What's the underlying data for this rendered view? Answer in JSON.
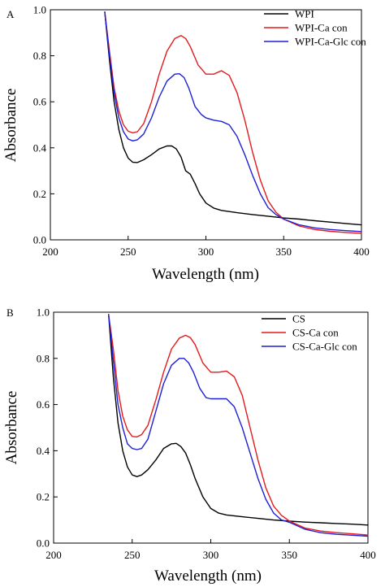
{
  "chart_data": [
    {
      "type": "line",
      "panel_label": "A",
      "xlabel": "Wavelength (nm)",
      "ylabel": "Absorbance",
      "xlim": [
        200,
        400
      ],
      "ylim": [
        0.0,
        1.0
      ],
      "xticks": [
        200,
        250,
        300,
        350,
        400
      ],
      "yticks": [
        0.0,
        0.2,
        0.4,
        0.6,
        0.8,
        1.0
      ],
      "xtick_labels": [
        "200",
        "250",
        "300",
        "350",
        "400"
      ],
      "ytick_labels": [
        "0.0",
        "0.2",
        "0.4",
        "0.6",
        "0.8",
        "1.0"
      ],
      "grid": false,
      "legend_position": "top-right",
      "series": [
        {
          "name": "WPI",
          "color": "#000000",
          "x": [
            235,
            238,
            241,
            244,
            247,
            250,
            253,
            256,
            260,
            265,
            270,
            275,
            278,
            281,
            284,
            287,
            290,
            293,
            296,
            300,
            305,
            310,
            320,
            330,
            340,
            350,
            360,
            370,
            380,
            390,
            400
          ],
          "y": [
            0.99,
            0.78,
            0.6,
            0.48,
            0.4,
            0.355,
            0.337,
            0.336,
            0.348,
            0.37,
            0.395,
            0.408,
            0.408,
            0.395,
            0.36,
            0.3,
            0.285,
            0.245,
            0.2,
            0.16,
            0.138,
            0.128,
            0.118,
            0.11,
            0.103,
            0.095,
            0.09,
            0.083,
            0.077,
            0.071,
            0.065
          ]
        },
        {
          "name": "WPI-Ca con",
          "color": "#e41a1c",
          "x": [
            235,
            238,
            241,
            244,
            247,
            250,
            253,
            256,
            260,
            265,
            270,
            275,
            280,
            284,
            287,
            290,
            295,
            300,
            305,
            310,
            315,
            320,
            325,
            330,
            335,
            340,
            345,
            350,
            360,
            370,
            380,
            390,
            400
          ],
          "y": [
            0.99,
            0.82,
            0.66,
            0.56,
            0.5,
            0.472,
            0.465,
            0.47,
            0.505,
            0.6,
            0.72,
            0.82,
            0.875,
            0.888,
            0.875,
            0.84,
            0.76,
            0.72,
            0.72,
            0.735,
            0.715,
            0.64,
            0.52,
            0.38,
            0.26,
            0.17,
            0.12,
            0.09,
            0.06,
            0.045,
            0.037,
            0.032,
            0.028
          ]
        },
        {
          "name": "WPI-Ca-Glc con",
          "color": "#1f1fd6",
          "x": [
            235,
            238,
            241,
            244,
            247,
            250,
            253,
            256,
            260,
            265,
            270,
            275,
            280,
            283,
            286,
            289,
            293,
            297,
            300,
            305,
            310,
            315,
            320,
            325,
            330,
            335,
            340,
            345,
            350,
            360,
            370,
            380,
            390,
            400
          ],
          "y": [
            0.99,
            0.8,
            0.64,
            0.53,
            0.47,
            0.438,
            0.43,
            0.435,
            0.46,
            0.53,
            0.62,
            0.69,
            0.72,
            0.722,
            0.705,
            0.66,
            0.58,
            0.545,
            0.53,
            0.52,
            0.515,
            0.5,
            0.45,
            0.37,
            0.28,
            0.2,
            0.14,
            0.11,
            0.09,
            0.065,
            0.052,
            0.045,
            0.04,
            0.036
          ]
        }
      ]
    },
    {
      "type": "line",
      "panel_label": "B",
      "xlabel": "Wavelength (nm)",
      "ylabel": "Absorbance",
      "xlim": [
        200,
        400
      ],
      "ylim": [
        0.0,
        1.0
      ],
      "xticks": [
        200,
        250,
        300,
        350,
        400
      ],
      "yticks": [
        0.0,
        0.2,
        0.4,
        0.6,
        0.8,
        1.0
      ],
      "xtick_labels": [
        "200",
        "250",
        "300",
        "350",
        "400"
      ],
      "ytick_labels": [
        "0.0",
        "0.2",
        "0.4",
        "0.6",
        "0.8",
        "1.0"
      ],
      "grid": false,
      "legend_position": "top-right",
      "series": [
        {
          "name": "CS",
          "color": "#000000",
          "x": [
            235,
            238,
            241,
            244,
            247,
            250,
            253,
            256,
            260,
            265,
            270,
            275,
            278,
            281,
            284,
            287,
            290,
            295,
            300,
            305,
            310,
            320,
            330,
            340,
            350,
            360,
            370,
            380,
            390,
            400
          ],
          "y": [
            0.99,
            0.72,
            0.52,
            0.4,
            0.33,
            0.295,
            0.288,
            0.295,
            0.318,
            0.36,
            0.41,
            0.43,
            0.432,
            0.418,
            0.39,
            0.34,
            0.28,
            0.2,
            0.15,
            0.13,
            0.122,
            0.114,
            0.107,
            0.1,
            0.095,
            0.091,
            0.088,
            0.085,
            0.082,
            0.078
          ]
        },
        {
          "name": "CS-Ca con",
          "color": "#e41a1c",
          "x": [
            235,
            238,
            241,
            244,
            247,
            250,
            253,
            256,
            260,
            265,
            270,
            275,
            280,
            284,
            287,
            290,
            295,
            300,
            305,
            310,
            315,
            320,
            325,
            330,
            335,
            340,
            345,
            350,
            360,
            370,
            380,
            390,
            400
          ],
          "y": [
            0.99,
            0.84,
            0.66,
            0.55,
            0.49,
            0.462,
            0.46,
            0.47,
            0.51,
            0.62,
            0.74,
            0.84,
            0.888,
            0.9,
            0.89,
            0.86,
            0.78,
            0.74,
            0.74,
            0.745,
            0.72,
            0.64,
            0.5,
            0.36,
            0.24,
            0.16,
            0.12,
            0.095,
            0.065,
            0.052,
            0.045,
            0.04,
            0.035
          ]
        },
        {
          "name": "CS-Ca-Glc con",
          "color": "#1f1fd6",
          "x": [
            235,
            238,
            241,
            244,
            247,
            250,
            253,
            256,
            260,
            265,
            270,
            275,
            280,
            283,
            286,
            289,
            293,
            297,
            300,
            305,
            310,
            315,
            320,
            325,
            330,
            335,
            340,
            345,
            350,
            360,
            370,
            380,
            390,
            400
          ],
          "y": [
            0.99,
            0.79,
            0.6,
            0.5,
            0.43,
            0.41,
            0.405,
            0.41,
            0.45,
            0.57,
            0.69,
            0.77,
            0.8,
            0.8,
            0.78,
            0.74,
            0.67,
            0.63,
            0.625,
            0.625,
            0.625,
            0.59,
            0.5,
            0.39,
            0.28,
            0.19,
            0.13,
            0.1,
            0.09,
            0.06,
            0.045,
            0.038,
            0.034,
            0.03
          ]
        }
      ]
    }
  ]
}
